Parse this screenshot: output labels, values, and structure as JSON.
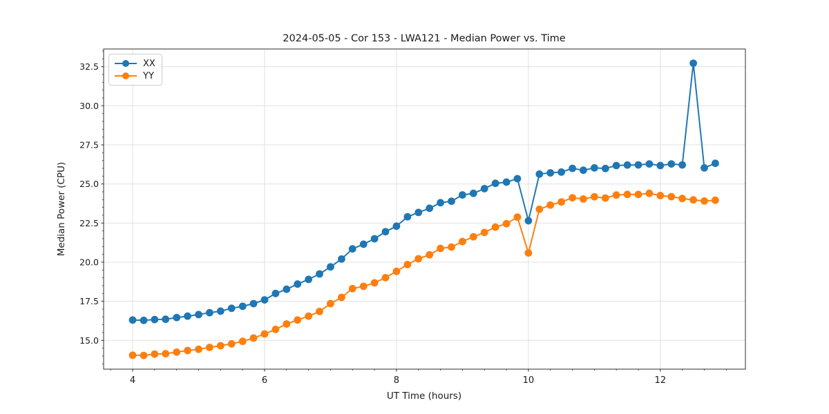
{
  "chart_data": {
    "type": "line",
    "title": "2024-05-05 - Cor 153 - LWA121 - Median Power vs. Time",
    "xlabel": "UT Time (hours)",
    "ylabel": "Median Power (CPU)",
    "grid": true,
    "legend_position": "upper left",
    "background_color": "#ffffff",
    "grid_color": "#e0e0e0",
    "xlim": [
      3.56,
      13.29
    ],
    "ylim": [
      13.16,
      33.63
    ],
    "x_ticks": [
      4,
      6,
      8,
      10,
      12
    ],
    "x_tick_labels": [
      "4",
      "6",
      "8",
      "10",
      "12"
    ],
    "y_ticks": [
      15.0,
      17.5,
      20.0,
      22.5,
      25.0,
      27.5,
      30.0,
      32.5
    ],
    "y_tick_labels": [
      "15.0",
      "17.5",
      "20.0",
      "22.5",
      "25.0",
      "27.5",
      "30.0",
      "32.5"
    ],
    "x": [
      4.0,
      4.167,
      4.333,
      4.5,
      4.667,
      4.833,
      5.0,
      5.167,
      5.333,
      5.5,
      5.667,
      5.833,
      6.0,
      6.167,
      6.333,
      6.5,
      6.667,
      6.833,
      7.0,
      7.167,
      7.333,
      7.5,
      7.667,
      7.833,
      8.0,
      8.167,
      8.333,
      8.5,
      8.667,
      8.833,
      9.0,
      9.167,
      9.333,
      9.5,
      9.667,
      9.833,
      10.0,
      10.167,
      10.333,
      10.5,
      10.667,
      10.833,
      11.0,
      11.167,
      11.333,
      11.5,
      11.667,
      11.833,
      12.0,
      12.167,
      12.333,
      12.5,
      12.667,
      12.833
    ],
    "series": [
      {
        "name": "XX",
        "color": "#1f77b4",
        "values": [
          16.3,
          16.28,
          16.33,
          16.35,
          16.46,
          16.55,
          16.65,
          16.77,
          16.87,
          17.05,
          17.18,
          17.35,
          17.59,
          18.0,
          18.27,
          18.6,
          18.9,
          19.25,
          19.7,
          20.2,
          20.85,
          21.15,
          21.5,
          21.95,
          22.3,
          22.9,
          23.18,
          23.45,
          23.8,
          23.9,
          24.3,
          24.4,
          24.7,
          25.04,
          25.12,
          25.34,
          22.65,
          25.63,
          25.71,
          25.76,
          26.0,
          25.88,
          26.03,
          25.99,
          26.18,
          26.21,
          26.22,
          26.28,
          26.18,
          26.28,
          26.22,
          32.72,
          26.03,
          26.32
        ]
      },
      {
        "name": "YY",
        "color": "#ff7f0e",
        "values": [
          14.05,
          14.04,
          14.12,
          14.15,
          14.25,
          14.35,
          14.43,
          14.55,
          14.66,
          14.78,
          14.94,
          15.15,
          15.41,
          15.7,
          16.05,
          16.3,
          16.55,
          16.85,
          17.35,
          17.75,
          18.31,
          18.46,
          18.68,
          19.01,
          19.41,
          19.85,
          20.22,
          20.47,
          20.88,
          20.97,
          21.32,
          21.62,
          21.9,
          22.24,
          22.46,
          22.88,
          20.59,
          23.38,
          23.65,
          23.85,
          24.12,
          24.04,
          24.18,
          24.1,
          24.29,
          24.33,
          24.33,
          24.4,
          24.26,
          24.19,
          24.07,
          23.98,
          23.91,
          23.96
        ]
      }
    ],
    "annotations": {
      "dip_time": 10.0,
      "spike_time": 12.5,
      "spike_value": 32.72
    }
  }
}
